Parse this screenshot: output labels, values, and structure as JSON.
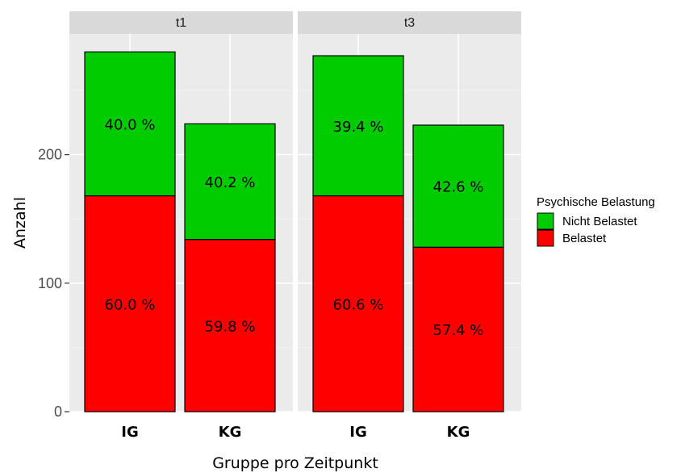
{
  "chart_data": {
    "type": "bar",
    "stacked": true,
    "xlabel": "Gruppe pro Zeitpunkt",
    "ylabel": "Anzahl",
    "ylim": [
      0,
      294
    ],
    "yticks": [
      0,
      100,
      200
    ],
    "grid": true,
    "legend": {
      "title": "Psychische Belastung",
      "position": "right",
      "entries": [
        "Nicht Belastet",
        "Belastet"
      ]
    },
    "colors": {
      "Nicht Belastet": "#00cc00",
      "Belastet": "#ff0000"
    },
    "facets": [
      {
        "label": "t1",
        "categories": [
          "IG",
          "KG"
        ],
        "series": [
          {
            "name": "Belastet",
            "values": [
              168,
              134
            ],
            "labels": [
              "60.0 %",
              "59.8 %"
            ]
          },
          {
            "name": "Nicht Belastet",
            "values": [
              112,
              90
            ],
            "labels": [
              "40.0 %",
              "40.2 %"
            ]
          }
        ]
      },
      {
        "label": "t3",
        "categories": [
          "IG",
          "KG"
        ],
        "series": [
          {
            "name": "Belastet",
            "values": [
              168,
              128
            ],
            "labels": [
              "60.6 %",
              "57.4 %"
            ]
          },
          {
            "name": "Nicht Belastet",
            "values": [
              109,
              95
            ],
            "labels": [
              "39.4 %",
              "42.6 %"
            ]
          }
        ]
      }
    ]
  }
}
